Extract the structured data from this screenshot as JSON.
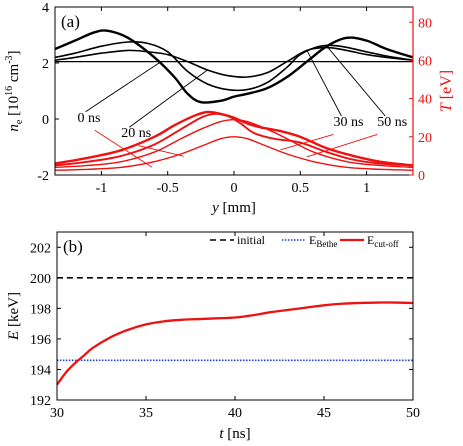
{
  "chart_data": [
    {
      "type": "line",
      "panel_label": "(a)",
      "xlabel_italic": "y",
      "xlabel_rest": " [mm]",
      "xlim": [
        -1.35,
        1.35
      ],
      "xticks": [
        "-1",
        "-0.5",
        "0",
        "0.5",
        "1"
      ],
      "xtick_values": [
        -1,
        -0.5,
        0,
        0.5,
        1
      ],
      "left_axis": {
        "label_italic": "n",
        "label_sub": "e",
        "label_rest": " [10",
        "label_sup": "16",
        "label_tail": " cm",
        "label_sup2": "-3",
        "label_close": "]",
        "ylim": [
          -2,
          4
        ],
        "ticks": [
          "-2",
          "0",
          "2",
          "4"
        ],
        "tick_values": [
          -2,
          0,
          2,
          4
        ],
        "color": "#000000"
      },
      "right_axis": {
        "label_italic": "T",
        "label_rest": " [eV]",
        "ylim": [
          0,
          88
        ],
        "ticks": [
          "0",
          "20",
          "40",
          "60",
          "80"
        ],
        "tick_values": [
          0,
          20,
          40,
          60,
          80
        ],
        "color": "#ee1111"
      },
      "density_series": [
        {
          "name": "0 ns",
          "color": "#000000",
          "x": [
            -1.35,
            1.35
          ],
          "y": [
            2.05,
            2.05
          ]
        },
        {
          "name": "20 ns",
          "color": "#000000",
          "x": [
            -1.35,
            -1.2,
            -1.0,
            -0.8,
            -0.65,
            -0.5,
            -0.35,
            -0.2,
            -0.05,
            0.1,
            0.25,
            0.4,
            0.55,
            0.7,
            0.85,
            1.0,
            1.15,
            1.35
          ],
          "y": [
            2.1,
            2.2,
            2.35,
            2.45,
            2.4,
            2.3,
            2.05,
            1.75,
            1.55,
            1.5,
            1.65,
            2.05,
            2.45,
            2.55,
            2.45,
            2.3,
            2.2,
            2.1
          ]
        },
        {
          "name": "30 ns",
          "color": "#000000",
          "x": [
            -1.35,
            -1.2,
            -1.0,
            -0.8,
            -0.65,
            -0.5,
            -0.35,
            -0.2,
            -0.05,
            0.1,
            0.25,
            0.4,
            0.5,
            0.65,
            0.8,
            1.0,
            1.15,
            1.35
          ],
          "y": [
            2.2,
            2.35,
            2.6,
            2.75,
            2.7,
            2.4,
            1.7,
            1.25,
            1.05,
            1.05,
            1.3,
            1.85,
            2.3,
            2.6,
            2.6,
            2.4,
            2.25,
            2.1
          ]
        },
        {
          "name": "50 ns",
          "color": "#000000",
          "x": [
            -1.35,
            -1.2,
            -1.05,
            -0.95,
            -0.8,
            -0.6,
            -0.45,
            -0.35,
            -0.25,
            -0.1,
            0.0,
            0.1,
            0.25,
            0.4,
            0.55,
            0.7,
            0.85,
            1.0,
            1.15,
            1.35
          ],
          "y": [
            2.5,
            2.8,
            3.1,
            3.15,
            2.9,
            2.2,
            1.5,
            0.9,
            0.6,
            0.65,
            0.8,
            0.9,
            1.1,
            1.5,
            2.05,
            2.6,
            2.9,
            2.8,
            2.5,
            2.2
          ]
        }
      ],
      "temperature_series": [
        {
          "name": "0 ns",
          "color": "#ee1111",
          "x": [
            -1.35,
            -1.1,
            -0.85,
            -0.6,
            -0.4,
            -0.25,
            -0.1,
            0.0,
            0.1,
            0.25,
            0.4,
            0.6,
            0.85,
            1.1,
            1.35
          ],
          "y": [
            2.5,
            3,
            4,
            7,
            11,
            15,
            19,
            20,
            19,
            15,
            11,
            7,
            4,
            3,
            2.5
          ]
        },
        {
          "name": "20 ns",
          "color": "#ee1111",
          "x": [
            -1.35,
            -1.1,
            -0.85,
            -0.6,
            -0.4,
            -0.25,
            -0.1,
            0.0,
            0.1,
            0.25,
            0.4,
            0.6,
            0.85,
            1.1,
            1.35
          ],
          "y": [
            4,
            5,
            7,
            12,
            19,
            24,
            28,
            29,
            28,
            24,
            19,
            12,
            7,
            5,
            4
          ]
        },
        {
          "name": "30 ns",
          "color": "#ee1111",
          "x": [
            -1.35,
            -1.1,
            -0.85,
            -0.6,
            -0.4,
            -0.25,
            -0.15,
            -0.05,
            0.05,
            0.15,
            0.3,
            0.5,
            0.7,
            0.9,
            1.1,
            1.35
          ],
          "y": [
            5,
            7,
            10,
            16,
            24,
            30,
            32,
            31,
            27,
            22,
            19,
            17,
            12,
            8,
            6,
            5
          ]
        },
        {
          "name": "50 ns",
          "color": "#ee1111",
          "x": [
            -1.35,
            -1.1,
            -0.85,
            -0.6,
            -0.45,
            -0.3,
            -0.2,
            -0.1,
            0.0,
            0.1,
            0.2,
            0.35,
            0.5,
            0.7,
            0.9,
            1.1,
            1.35
          ],
          "y": [
            6,
            9,
            13,
            20,
            26,
            31,
            33,
            32,
            30,
            27,
            25,
            23,
            20,
            14,
            10,
            7,
            5
          ]
        }
      ],
      "annotations": [
        {
          "text": "0 ns",
          "data_x": -0.55,
          "data_y": 2.05,
          "text_x": -1.18,
          "text_y": -0.1,
          "color": "#000000"
        },
        {
          "text": "20 ns",
          "data_x": -0.2,
          "data_y": 1.75,
          "text_x": -0.85,
          "text_y": -0.65,
          "color": "#000000"
        },
        {
          "text": "30 ns",
          "data_x": 0.55,
          "data_y": 2.45,
          "text_x": 0.75,
          "text_y": -0.25,
          "color": "#000000"
        },
        {
          "text": "50 ns",
          "data_x": 0.7,
          "data_y": 2.6,
          "text_x": 1.08,
          "text_y": -0.25,
          "color": "#000000"
        }
      ],
      "red_leaders": [
        {
          "from_x": -1.05,
          "from_y": -0.4,
          "to_x": -0.62,
          "to_y": -1.72
        },
        {
          "from_x": -0.72,
          "from_y": -0.95,
          "to_x": -0.38,
          "to_y": -1.33
        },
        {
          "from_x": 0.75,
          "from_y": -0.55,
          "to_x": 0.35,
          "to_y": -1.1
        },
        {
          "from_x": 1.08,
          "from_y": -0.55,
          "to_x": 0.55,
          "to_y": -1.35
        }
      ]
    },
    {
      "type": "line",
      "panel_label": "(b)",
      "xlabel_italic": "t",
      "xlabel_rest": " [ns]",
      "ylabel_italic": "E",
      "ylabel_rest": " [keV]",
      "xlim": [
        30,
        50
      ],
      "ylim": [
        192,
        203
      ],
      "xticks": [
        "30",
        "35",
        "40",
        "45",
        "50"
      ],
      "xtick_values": [
        30,
        35,
        40,
        45,
        50
      ],
      "yticks": [
        "192",
        "194",
        "196",
        "198",
        "200",
        "202"
      ],
      "ytick_values": [
        192,
        194,
        196,
        198,
        200,
        202
      ],
      "legend_position": "top-right",
      "series": [
        {
          "name": "initial",
          "name_sub": "",
          "color": "#000000",
          "style": "dashed",
          "x": [
            30,
            50
          ],
          "y": [
            200.0,
            200.0
          ]
        },
        {
          "name": "E",
          "name_sub": "Bethe",
          "color": "#1a3bd6",
          "style": "dotted",
          "x": [
            30,
            50
          ],
          "y": [
            194.6,
            194.6
          ]
        },
        {
          "name": "E",
          "name_sub": "cut-off",
          "color": "#ee1111",
          "style": "solid",
          "x": [
            30,
            30.5,
            31,
            31.5,
            32,
            33,
            34,
            35,
            36,
            37,
            38,
            39,
            40,
            41,
            42,
            43,
            44,
            45,
            46,
            47,
            48,
            49,
            50
          ],
          "y": [
            193.0,
            193.8,
            194.4,
            194.9,
            195.4,
            196.1,
            196.6,
            196.95,
            197.15,
            197.25,
            197.3,
            197.35,
            197.4,
            197.55,
            197.75,
            197.9,
            198.05,
            198.2,
            198.3,
            198.35,
            198.38,
            198.38,
            198.35
          ]
        }
      ]
    }
  ]
}
